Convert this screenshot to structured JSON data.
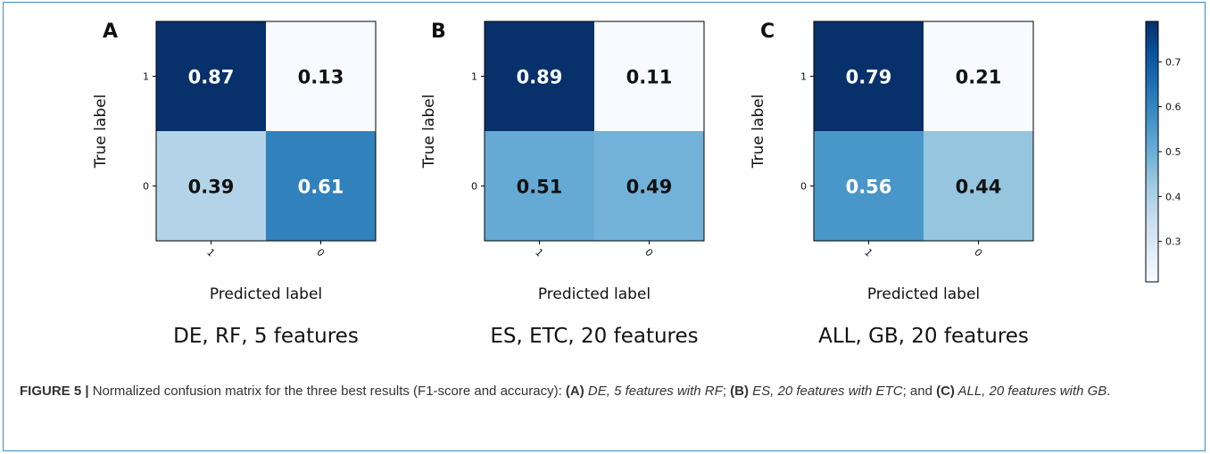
{
  "chart_data": [
    {
      "type": "heatmap",
      "panel_letter": "A",
      "title": "DE, RF, 5 features",
      "xlabel": "Predicted label",
      "ylabel": "True label",
      "row_labels": [
        "1",
        "0"
      ],
      "col_labels": [
        "1",
        "0"
      ],
      "values": [
        [
          0.87,
          0.13
        ],
        [
          0.39,
          0.61
        ]
      ]
    },
    {
      "type": "heatmap",
      "panel_letter": "B",
      "title": "ES, ETC, 20 features",
      "xlabel": "Predicted label",
      "ylabel": "True label",
      "row_labels": [
        "1",
        "0"
      ],
      "col_labels": [
        "1",
        "0"
      ],
      "values": [
        [
          0.89,
          0.11
        ],
        [
          0.51,
          0.49
        ]
      ]
    },
    {
      "type": "heatmap",
      "panel_letter": "C",
      "title": "ALL, GB, 20 features",
      "xlabel": "Predicted label",
      "ylabel": "True label",
      "row_labels": [
        "1",
        "0"
      ],
      "col_labels": [
        "1",
        "0"
      ],
      "values": [
        [
          0.79,
          0.21
        ],
        [
          0.56,
          0.44
        ]
      ]
    }
  ],
  "colorbar": {
    "colormap": "Blues",
    "min": 0.21,
    "max": 0.79,
    "ticks": [
      "0.7",
      "0.6",
      "0.5",
      "0.4",
      "0.3"
    ],
    "tick_values": [
      0.7,
      0.6,
      0.5,
      0.4,
      0.3
    ]
  },
  "caption": {
    "figure_label": "FIGURE 5 |",
    "text_intro": " Normalized confusion matrix for the three best results (F1-score and accuracy): ",
    "a_label": "(A)",
    "a_text": " DE, 5 features with RF",
    "sep1": "; ",
    "b_label": "(B)",
    "b_text": " ES, 20 features with ETC",
    "sep2": "; and ",
    "c_label": "(C)",
    "c_text": " ALL, 20 features with GB",
    "end": "."
  }
}
